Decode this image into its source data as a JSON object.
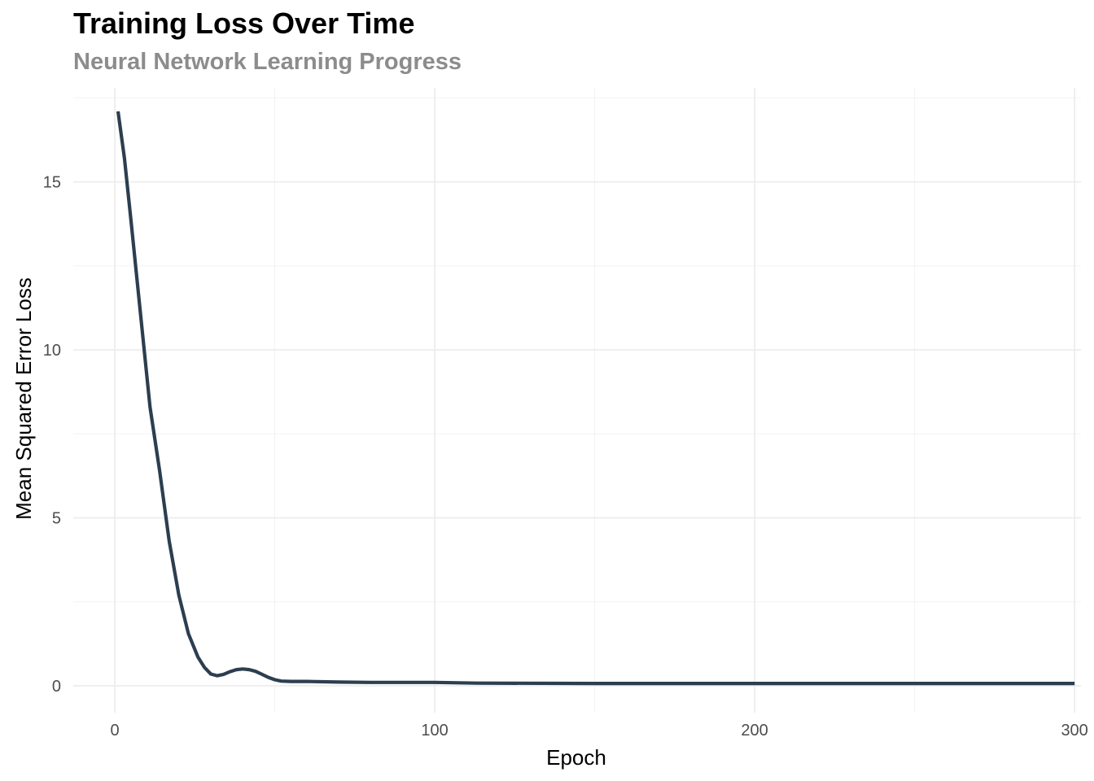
{
  "chart_data": {
    "type": "line",
    "title": "Training Loss Over Time",
    "subtitle": "Neural Network Learning Progress",
    "xlabel": "Epoch",
    "ylabel": "Mean Squared Error Loss",
    "xlim": [
      -13,
      302
    ],
    "ylim": [
      -0.8,
      17.8
    ],
    "x_ticks": [
      0,
      100,
      200,
      300
    ],
    "y_ticks": [
      0,
      5,
      10,
      15
    ],
    "grid": true,
    "line_color": "#2c3e50",
    "series": [
      {
        "x": [
          1,
          3,
          5,
          8,
          11,
          14,
          17,
          20,
          23,
          26,
          28,
          30,
          32,
          34,
          36,
          38,
          40,
          42,
          44,
          46,
          48,
          50,
          52,
          55,
          60,
          70,
          80,
          100,
          113,
          150,
          200,
          250,
          300
        ],
        "values": [
          17.1,
          15.7,
          13.9,
          11.1,
          8.3,
          6.4,
          4.3,
          2.7,
          1.55,
          0.85,
          0.55,
          0.35,
          0.3,
          0.34,
          0.42,
          0.48,
          0.5,
          0.48,
          0.43,
          0.34,
          0.25,
          0.18,
          0.14,
          0.13,
          0.13,
          0.11,
          0.1,
          0.1,
          0.08,
          0.07,
          0.07,
          0.07,
          0.07
        ]
      }
    ]
  }
}
